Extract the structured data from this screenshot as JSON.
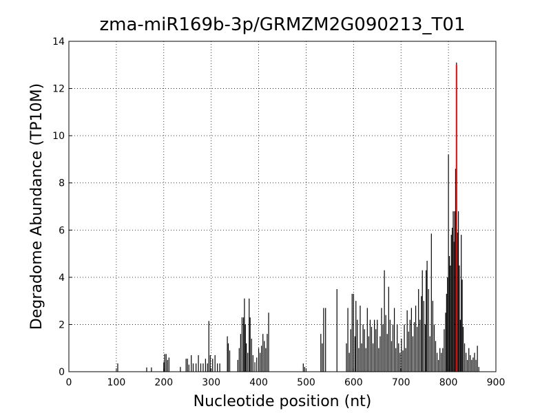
{
  "chart_data": {
    "type": "stem",
    "title": "zma-miR169b-3p/GRMZM2G090213_T01",
    "xlabel": "Nucleotide position (nt)",
    "ylabel": "Degradome Abundance (TP10M)",
    "xlim": [
      0,
      900
    ],
    "xticks": [
      0,
      100,
      200,
      300,
      400,
      500,
      600,
      700,
      800,
      900
    ],
    "ylim": [
      0,
      14
    ],
    "yticks": [
      0,
      2,
      4,
      6,
      8,
      10,
      12,
      14
    ],
    "grid": true,
    "series": [
      {
        "color": "#000000",
        "x": [
          103,
          164,
          174,
          200,
          202,
          205,
          208,
          211,
          235,
          247,
          250,
          253,
          258,
          262,
          268,
          273,
          278,
          283,
          288,
          292,
          295,
          298,
          303,
          308,
          313,
          318,
          334,
          336,
          339,
          356,
          359,
          362,
          365,
          368,
          370,
          372,
          374,
          377,
          380,
          382,
          385,
          388,
          392,
          396,
          400,
          403,
          406,
          409,
          412,
          415,
          418,
          421,
          494,
          497,
          531,
          534,
          537,
          541,
          565,
          585,
          588,
          591,
          594,
          597,
          600,
          603,
          605,
          608,
          611,
          614,
          617,
          620,
          623,
          626,
          629,
          632,
          635,
          638,
          641,
          644,
          647,
          650,
          653,
          656,
          659,
          662,
          665,
          668,
          671,
          674,
          677,
          680,
          683,
          686,
          689,
          692,
          695,
          698,
          701,
          704,
          707,
          710,
          713,
          716,
          719,
          722,
          725,
          728,
          731,
          734,
          737,
          740,
          743,
          745,
          748,
          751,
          753,
          755,
          758,
          761,
          764,
          767,
          770,
          773,
          776,
          779,
          782,
          785,
          788,
          791,
          794,
          796,
          798,
          800,
          802,
          804,
          806,
          808,
          810,
          812,
          813,
          815,
          817,
          819,
          821,
          823,
          825,
          827,
          829,
          831,
          834,
          837,
          840,
          843,
          846,
          849,
          852,
          855,
          858,
          861,
          864
        ],
        "values": [
          0.35,
          0.18,
          0.18,
          0.4,
          0.75,
          0.75,
          0.5,
          0.6,
          0.2,
          0.55,
          0.55,
          0.3,
          0.7,
          0.35,
          0.35,
          0.7,
          0.35,
          0.35,
          0.55,
          0.35,
          2.15,
          0.7,
          0.55,
          0.7,
          0.35,
          0.35,
          1.5,
          1.2,
          0.9,
          0.5,
          1.0,
          1.6,
          2.3,
          2.3,
          3.1,
          2.0,
          1.2,
          0.8,
          3.1,
          2.3,
          1.4,
          0.7,
          0.4,
          0.6,
          1.0,
          0.8,
          1.1,
          1.6,
          1.3,
          1.0,
          1.6,
          2.5,
          0.35,
          0.2,
          1.6,
          1.2,
          2.7,
          2.7,
          3.5,
          1.2,
          2.7,
          0.8,
          1.8,
          3.3,
          3.3,
          1.5,
          3.0,
          2.2,
          1.0,
          2.8,
          1.2,
          2.0,
          1.8,
          1.0,
          2.7,
          1.5,
          2.2,
          1.9,
          1.2,
          2.2,
          1.8,
          2.2,
          1.0,
          1.5,
          2.7,
          2.0,
          4.3,
          2.4,
          1.6,
          3.6,
          2.2,
          1.3,
          2.0,
          2.7,
          1.0,
          2.0,
          1.2,
          0.8,
          1.4,
          0.9,
          2.0,
          1.0,
          2.6,
          1.7,
          2.2,
          2.7,
          1.5,
          2.1,
          2.8,
          1.9,
          3.5,
          2.2,
          3.2,
          4.3,
          3.0,
          2.0,
          4.3,
          4.7,
          3.5,
          1.5,
          5.85,
          3.0,
          2.0,
          1.3,
          0.8,
          0.5,
          1.0,
          0.8,
          1.0,
          1.8,
          2.5,
          3.3,
          4.0,
          9.2,
          4.9,
          4.5,
          5.8,
          6.1,
          6.8,
          5.5,
          6.8,
          8.6,
          13.1,
          5.9,
          6.8,
          4.5,
          2.2,
          5.8,
          3.9,
          1.9,
          1.2,
          0.8,
          0.5,
          1.0,
          0.7,
          0.5,
          0.6,
          0.8,
          0.5,
          1.1,
          0.2
        ]
      },
      {
        "color": "#ff0000",
        "x": [
          817
        ],
        "values": [
          13.0
        ]
      }
    ]
  }
}
